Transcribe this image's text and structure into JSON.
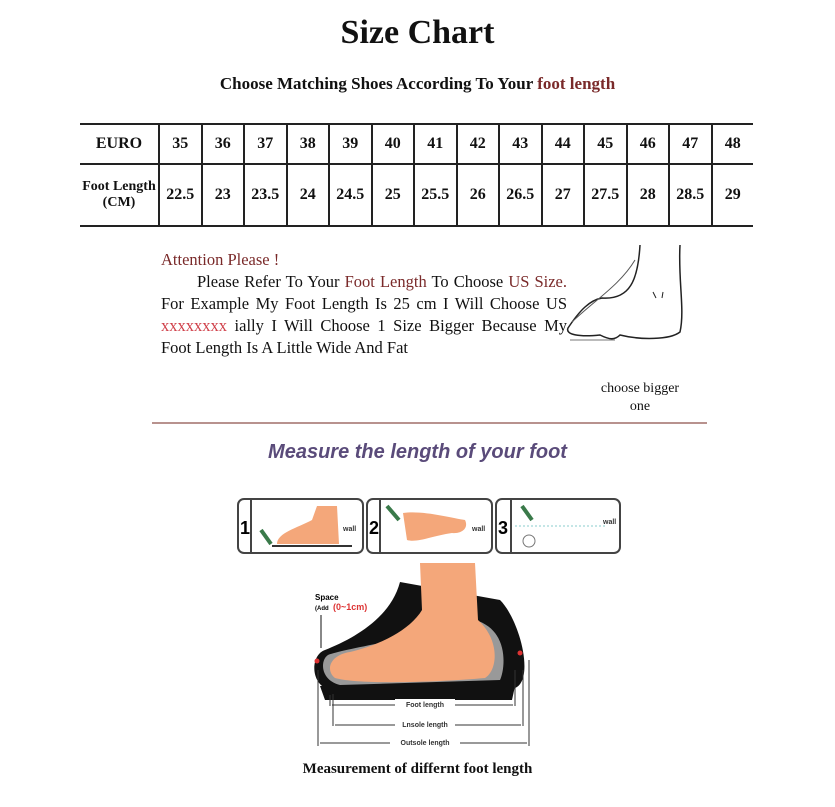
{
  "title": "Size Chart",
  "subtitle": {
    "prefix": "Choose Matching Shoes According To Your ",
    "highlight": "foot length"
  },
  "size_table": {
    "row_headers": [
      "EURO",
      "Foot Length (CM)"
    ],
    "euro": [
      "35",
      "36",
      "37",
      "38",
      "39",
      "40",
      "41",
      "42",
      "43",
      "44",
      "45",
      "46",
      "47",
      "48"
    ],
    "foot_length_cm": [
      "22.5",
      "23",
      "23.5",
      "24",
      "24.5",
      "25",
      "25.5",
      "26",
      "26.5",
      "27",
      "27.5",
      "28",
      "28.5",
      "29"
    ]
  },
  "attention": {
    "heading": "Attention Please !",
    "p1": "Please Refer To Your ",
    "p1_hl": "Foot Length",
    "p2": " To Choose ",
    "p2_hl": "US Size.",
    "p3": " For Example My Foot Length Is 25 cm I Will Choose US ",
    "p3_x": "xxxxxxxx",
    "p4": " ially I Will Choose 1 Size Bigger Because My Foot Length Is A Little Wide And Fat"
  },
  "choose_bigger": "choose bigger one",
  "measure_heading": "Measure the length of your foot",
  "steps": [
    {
      "num": "1",
      "wall": "wall"
    },
    {
      "num": "2",
      "wall": "wall"
    },
    {
      "num": "3",
      "wall": "wall"
    }
  ],
  "diagram": {
    "space_label": "Space",
    "space_add_prefix": "(Add",
    "space_add_value": "(0~1cm)",
    "foot_length": "Foot length",
    "insole_length": "Lnsole length",
    "outsole_length": "Outsole length"
  },
  "caption": "Measurement of differnt foot length",
  "colors": {
    "accent_red": "#7a2a2a",
    "heading_purple": "#5a4b7a",
    "skin": "#f4a77a"
  }
}
